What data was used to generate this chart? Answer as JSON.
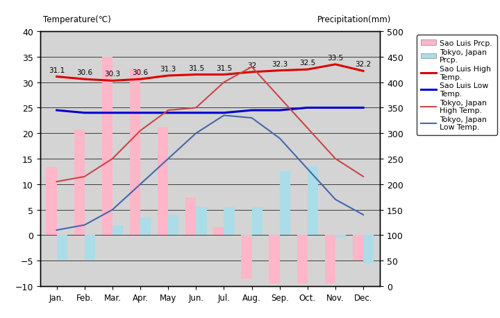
{
  "months": [
    "Jan.",
    "Feb.",
    "Mar.",
    "Apr.",
    "May",
    "Jun.",
    "Jul.",
    "Aug.",
    "Sep.",
    "Oct.",
    "Nov.",
    "Dec."
  ],
  "sao_luis_high": [
    31.1,
    30.6,
    30.3,
    30.6,
    31.3,
    31.5,
    31.5,
    32.0,
    32.3,
    32.5,
    33.5,
    32.2
  ],
  "sao_luis_low": [
    24.5,
    24.0,
    24.0,
    24.0,
    24.0,
    24.0,
    24.0,
    24.5,
    24.5,
    25.0,
    25.0,
    25.0
  ],
  "tokyo_high": [
    10.5,
    11.5,
    15.0,
    20.5,
    24.5,
    25.0,
    30.0,
    33.0,
    27.0,
    21.0,
    15.0,
    11.5
  ],
  "tokyo_low": [
    1.0,
    2.0,
    5.0,
    10.0,
    15.0,
    20.0,
    23.5,
    23.0,
    19.0,
    13.0,
    7.0,
    4.0
  ],
  "sao_luis_high_labels": [
    "31.1",
    "30.6",
    "30.3",
    "30.6",
    "31.3",
    "31.5",
    "31.5",
    "32",
    "32.3",
    "32.5",
    "33.5",
    "32.2"
  ],
  "sao_luis_precip_bar": [
    13.4,
    20.7,
    35.0,
    32.7,
    21.2,
    7.4,
    1.5,
    -8.5,
    -9.5,
    -9.5,
    -9.5,
    -5.0
  ],
  "tokyo_precip_bar": [
    -4.8,
    -4.8,
    2.0,
    3.5,
    4.0,
    5.5,
    5.5,
    5.5,
    12.5,
    13.5,
    -0.5,
    -5.5
  ],
  "ylim_temp": [
    -10,
    40
  ],
  "ylim_precip": [
    0,
    500
  ],
  "bg_color": "#d4d4d4",
  "sao_luis_precip_color": "#ffb6c8",
  "tokyo_precip_color": "#aadde8",
  "sao_luis_high_color": "#dd0000",
  "sao_luis_low_color": "#0000cc",
  "tokyo_high_color": "#cc4444",
  "tokyo_low_color": "#4466aa",
  "title_left": "Temperature(℃)",
  "title_right": "Precipitation(mm)",
  "legend_labels": [
    "Sao Luis Prcp.",
    "Tokyo, Japan\nPrcp.",
    "Sao Luis High\nTemp.",
    "Sao Luis Low\nTemp.",
    "Tokyo, Japan\nHigh Temp.",
    "Tokyo, Japan\nLow Temp."
  ],
  "bar_width": 0.38
}
